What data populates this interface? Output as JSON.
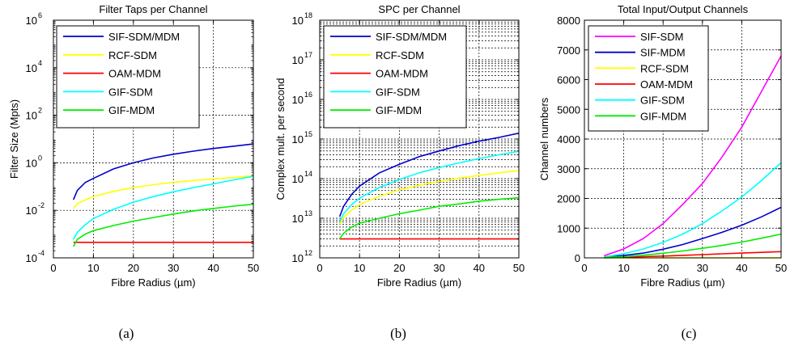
{
  "chart_data": [
    {
      "type": "line",
      "caption": "(a)",
      "title": "Filter Taps per Channel",
      "xlabel": "Fibre Radius (µm)",
      "ylabel": "Filter Size (Mpts)",
      "yscale": "log",
      "xlim": [
        0,
        50
      ],
      "ylim": [
        0.0001,
        1000000
      ],
      "xticks": [
        "0",
        "10",
        "20",
        "30",
        "40",
        "50"
      ],
      "yticks": [
        {
          "base": "10",
          "exp": "-4",
          "value": 0.0001
        },
        {
          "base": "10",
          "exp": "-2",
          "value": 0.01
        },
        {
          "base": "10",
          "exp": "0",
          "value": 1
        },
        {
          "base": "10",
          "exp": "2",
          "value": 100
        },
        {
          "base": "10",
          "exp": "4",
          "value": 10000
        },
        {
          "base": "10",
          "exp": "6",
          "value": 1000000
        }
      ],
      "grid": true,
      "legend_position": "top-left",
      "x": [
        5,
        6,
        8,
        10,
        15,
        20,
        25,
        30,
        35,
        40,
        45,
        50
      ],
      "series": [
        {
          "name": "SIF-SDM/MDM",
          "color": "#0000cc",
          "values": [
            0.028,
            0.07,
            0.15,
            0.22,
            0.55,
            1.0,
            1.6,
            2.3,
            3.1,
            4.0,
            5.0,
            6.2
          ]
        },
        {
          "name": "RCF-SDM",
          "color": "#ffff00",
          "values": [
            0.012,
            0.019,
            0.028,
            0.038,
            0.063,
            0.09,
            0.12,
            0.15,
            0.18,
            0.21,
            0.24,
            0.28
          ]
        },
        {
          "name": "OAM-MDM",
          "color": "#ff0000",
          "values": [
            0.00045,
            0.00045,
            0.00045,
            0.00045,
            0.00045,
            0.00045,
            0.00045,
            0.00045,
            0.00045,
            0.00045,
            0.00045,
            0.00045
          ]
        },
        {
          "name": "GIF-SDM",
          "color": "#00ffff",
          "values": [
            0.0006,
            0.0012,
            0.0025,
            0.0045,
            0.011,
            0.022,
            0.038,
            0.06,
            0.09,
            0.13,
            0.19,
            0.27
          ]
        },
        {
          "name": "GIF-MDM",
          "color": "#00ee00",
          "values": [
            0.0003,
            0.0006,
            0.001,
            0.0014,
            0.0023,
            0.0035,
            0.005,
            0.007,
            0.0095,
            0.012,
            0.015,
            0.018
          ]
        }
      ]
    },
    {
      "type": "line",
      "caption": "(b)",
      "title": "SPC per Channel",
      "xlabel": "Fibre Radius (µm)",
      "ylabel": "Complex mult. per second",
      "yscale": "log",
      "xlim": [
        0,
        50
      ],
      "ylim": [
        1000000000000,
        1000000000000000000
      ],
      "xticks": [
        "0",
        "10",
        "20",
        "30",
        "40",
        "50"
      ],
      "yticks": [
        {
          "base": "10",
          "exp": "12",
          "value": 1000000000000.0
        },
        {
          "base": "10",
          "exp": "13",
          "value": 10000000000000.0
        },
        {
          "base": "10",
          "exp": "14",
          "value": 100000000000000.0
        },
        {
          "base": "10",
          "exp": "15",
          "value": 1000000000000000.0
        },
        {
          "base": "10",
          "exp": "16",
          "value": 1e+16
        },
        {
          "base": "10",
          "exp": "17",
          "value": 1e+17
        },
        {
          "base": "10",
          "exp": "18",
          "value": 1e+18
        }
      ],
      "grid": true,
      "minor_grid": true,
      "legend_position": "top-left",
      "x": [
        5,
        6,
        8,
        10,
        15,
        20,
        25,
        30,
        35,
        40,
        45,
        50
      ],
      "series": [
        {
          "name": "SIF-SDM/MDM",
          "color": "#0000cc",
          "values": [
            11000000000000.0,
            20000000000000.0,
            40000000000000.0,
            65000000000000.0,
            140000000000000.0,
            230000000000000.0,
            360000000000000.0,
            500000000000000.0,
            680000000000000.0,
            880000000000000.0,
            1100000000000000.0,
            1400000000000000.0
          ]
        },
        {
          "name": "RCF-SDM",
          "color": "#ffff00",
          "values": [
            7000000000000.0,
            10500000000000.0,
            16000000000000.0,
            22000000000000.0,
            36000000000000.0,
            52000000000000.0,
            68000000000000.0,
            85000000000000.0,
            103000000000000.0,
            120000000000000.0,
            140000000000000.0,
            160000000000000.0
          ]
        },
        {
          "name": "OAM-MDM",
          "color": "#ff0000",
          "values": [
            3000000000000.0,
            3000000000000.0,
            3000000000000.0,
            3000000000000.0,
            3000000000000.0,
            3000000000000.0,
            3000000000000.0,
            3000000000000.0,
            3000000000000.0,
            3000000000000.0,
            3000000000000.0,
            3000000000000.0
          ]
        },
        {
          "name": "GIF-SDM",
          "color": "#00ffff",
          "values": [
            8000000000000.0,
            13000000000000.0,
            22000000000000.0,
            32000000000000.0,
            60000000000000.0,
            95000000000000.0,
            140000000000000.0,
            190000000000000.0,
            250000000000000.0,
            320000000000000.0,
            400000000000000.0,
            490000000000000.0
          ]
        },
        {
          "name": "GIF-MDM",
          "color": "#00ee00",
          "values": [
            3000000000000.0,
            4200000000000.0,
            6000000000000.0,
            7500000000000.0,
            10000000000000.0,
            13000000000000.0,
            16000000000000.0,
            20000000000000.0,
            23000000000000.0,
            27000000000000.0,
            30000000000000.0,
            33000000000000.0
          ]
        }
      ]
    },
    {
      "type": "line",
      "caption": "(c)",
      "title": "Total Input/Output Channels",
      "xlabel": "Fibre Radius (µm)",
      "ylabel": "Channel numbers",
      "yscale": "linear",
      "xlim": [
        0,
        50
      ],
      "ylim": [
        0,
        8000
      ],
      "xticks": [
        "0",
        "10",
        "20",
        "30",
        "40",
        "50"
      ],
      "yticks": [
        {
          "label": "0",
          "value": 0
        },
        {
          "label": "1000",
          "value": 1000
        },
        {
          "label": "2000",
          "value": 2000
        },
        {
          "label": "3000",
          "value": 3000
        },
        {
          "label": "4000",
          "value": 4000
        },
        {
          "label": "5000",
          "value": 5000
        },
        {
          "label": "6000",
          "value": 6000
        },
        {
          "label": "7000",
          "value": 7000
        },
        {
          "label": "8000",
          "value": 8000
        }
      ],
      "grid": true,
      "legend_position": "top-left",
      "x": [
        5,
        10,
        15,
        20,
        25,
        30,
        35,
        40,
        45,
        50
      ],
      "series": [
        {
          "name": "SIF-SDM",
          "color": "#ff00ff",
          "values": [
            70,
            300,
            650,
            1150,
            1800,
            2500,
            3400,
            4400,
            5600,
            6800
          ]
        },
        {
          "name": "SIF-MDM",
          "color": "#0000cc",
          "values": [
            20,
            80,
            160,
            290,
            450,
            650,
            860,
            1100,
            1380,
            1700
          ]
        },
        {
          "name": "RCF-SDM",
          "color": "#ffff00",
          "values": [
            0,
            0,
            0,
            0,
            0,
            0,
            0,
            0,
            0,
            0
          ]
        },
        {
          "name": "OAM-MDM",
          "color": "#ff0000",
          "values": [
            5,
            20,
            40,
            60,
            85,
            110,
            135,
            160,
            185,
            210
          ]
        },
        {
          "name": "GIF-SDM",
          "color": "#00ffff",
          "values": [
            30,
            140,
            300,
            520,
            800,
            1150,
            1580,
            2050,
            2600,
            3200
          ]
        },
        {
          "name": "GIF-MDM",
          "color": "#00ee00",
          "values": [
            10,
            40,
            90,
            155,
            230,
            320,
            420,
            530,
            660,
            800
          ]
        }
      ]
    }
  ]
}
